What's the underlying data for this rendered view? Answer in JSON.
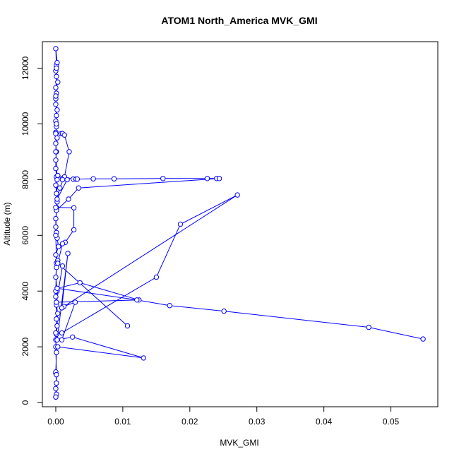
{
  "chart_data": {
    "type": "line",
    "title": "ATOM1 North_America MVK_GMI",
    "xlabel": "MVK_GMI",
    "ylabel": "Altitude (m)",
    "xlim": [
      -0.002,
      0.057
    ],
    "ylim": [
      -150,
      12950
    ],
    "xticks": [
      0.0,
      0.01,
      0.02,
      0.03,
      0.04,
      0.05
    ],
    "xtick_labels": [
      "0.00",
      "0.01",
      "0.02",
      "0.03",
      "0.04",
      "0.05"
    ],
    "yticks": [
      0,
      2000,
      4000,
      6000,
      8000,
      10000,
      12000
    ],
    "ytick_labels": [
      "0",
      "2000",
      "4000",
      "6000",
      "8000",
      "10000",
      "12000"
    ],
    "grid": false,
    "color": "#0000ff",
    "series": [
      {
        "marker": "open-circle",
        "x": [
          0.0,
          0.0,
          0.0001,
          0.0,
          0.0,
          0.0001,
          0.0,
          0.0001,
          0.0002,
          0.0003,
          0.0001,
          0.0,
          0.0002,
          0.0,
          0.0001,
          0.0002,
          0.0003,
          0.0,
          0.0004,
          0.0002,
          0.0001,
          0.0,
          0.0,
          0.0001,
          0.0002,
          0.0001,
          0.0,
          0.0001,
          0.0,
          0.0,
          0.0001,
          0.0,
          0.0002,
          0.0,
          0.0001,
          0.0,
          0.0001,
          0.0002,
          0.0,
          0.0,
          0.0001,
          0.0,
          0.0003,
          0.0001,
          0.0,
          0.0001,
          0.0002,
          0.0,
          0.0001,
          0.0,
          0.0001,
          0.0,
          0.0002,
          0.0001,
          0.0,
          0.0001,
          0.0,
          0.0001,
          0.0,
          0.0001,
          0.0001,
          0.0
        ],
        "y": [
          200,
          500,
          700,
          1050,
          1100,
          1800,
          2250,
          2450,
          2750,
          3200,
          3500,
          3800,
          4000,
          4500,
          4850,
          5000,
          5100,
          5300,
          5600,
          5900,
          6100,
          6300,
          6600,
          6900,
          7200,
          7500,
          7800,
          8100,
          8400,
          8700,
          9000,
          9300,
          9500,
          9700,
          9900,
          10100,
          10300,
          10500,
          10700,
          10900,
          11100,
          11300,
          11500,
          11700,
          11900,
          12100,
          12200,
          12700,
          12000,
          11000,
          10000,
          9000,
          8000,
          7000,
          6000,
          5000,
          4000,
          3000,
          2000,
          1000,
          300,
          200
        ]
      },
      {
        "marker": "open-circle",
        "x": [
          0.0,
          0.0008,
          0.001,
          0.0013,
          0.002,
          0.0013,
          0.0006,
          0.0002,
          0.0017,
          0.001,
          0.0003,
          0.0026,
          0.003,
          0.0032,
          0.0056,
          0.0087,
          0.016,
          0.0226,
          0.024,
          0.0244,
          0.0034,
          0.0019,
          0.0001
        ],
        "y": [
          9650,
          9650,
          9650,
          9600,
          9000,
          8100,
          7700,
          7300,
          8000,
          8000,
          8150,
          8020,
          8020,
          8020,
          8030,
          8030,
          8040,
          8040,
          8040,
          8040,
          7700,
          7300,
          6900
        ]
      },
      {
        "marker": "open-circle",
        "x": [
          0.0,
          0.0027,
          0.0027,
          0.0014,
          0.001,
          0.0003,
          0.0107,
          0.0003,
          0.001,
          0.0001,
          0.0124,
          0.0036,
          0.0002,
          0.0121,
          0.017,
          0.0251,
          0.0467,
          0.0548
        ],
        "y": [
          7000,
          6990,
          6200,
          5750,
          5700,
          5000,
          2750,
          5000,
          4900,
          3600,
          3680,
          4300,
          4100,
          3680,
          3480,
          3280,
          2700,
          2280
        ]
      },
      {
        "marker": "open-circle",
        "x": [
          0.0,
          0.0009,
          0.015,
          0.0186,
          0.0271,
          0.0009,
          0.0012,
          0.0029,
          0.0009
        ],
        "y": [
          2500,
          2500,
          4500,
          6400,
          7450,
          3400,
          3450,
          3600,
          2250
        ]
      },
      {
        "marker": "open-circle",
        "x": [
          0.0003,
          0.0131,
          0.0025,
          0.0002,
          0.0018,
          0.0009
        ],
        "y": [
          2000,
          1600,
          2350,
          2250,
          5350,
          3400
        ]
      }
    ]
  }
}
